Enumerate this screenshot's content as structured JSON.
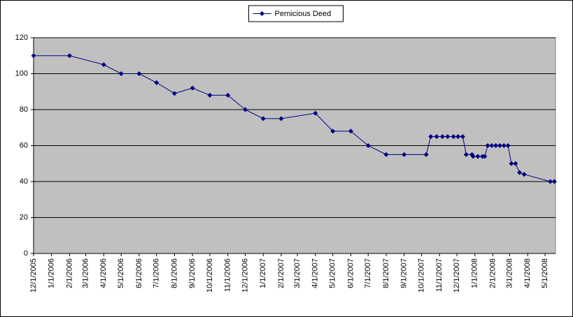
{
  "chart_data": {
    "type": "line",
    "x": [
      "12/1/2005",
      "2/1/2006",
      "4/1/2006",
      "5/1/2006",
      "6/1/2006",
      "7/1/2006",
      "8/1/2006",
      "9/1/2006",
      "10/1/2006",
      "11/1/2006",
      "12/1/2006",
      "1/1/2007",
      "2/1/2007",
      "4/1/2007",
      "5/1/2007",
      "6/1/2007",
      "7/1/2007",
      "8/1/2007",
      "9/1/2007",
      "10/9/2007",
      "10/17/2007",
      "10/27/2007",
      "11/6/2007",
      "11/15/2007",
      "11/25/2007",
      "12/3/2007",
      "12/11/2007",
      "12/17/2007",
      "12/27/2007",
      "12/29/2007",
      "1/6/2008",
      "1/14/2008",
      "1/18/2008",
      "1/23/2008",
      "1/30/2008",
      "2/6/2008",
      "2/13/2008",
      "2/20/2008",
      "2/27/2008",
      "3/4/2008",
      "3/11/2008",
      "3/18/2008",
      "3/26/2008",
      "5/10/2008",
      "5/17/2008"
    ],
    "series": [
      {
        "name": "Pernicious Deed",
        "color": "#000080",
        "values": [
          110,
          110,
          105,
          100,
          100,
          95,
          89,
          92,
          88,
          88,
          80,
          75,
          75,
          78,
          68,
          68,
          60,
          55,
          55,
          55,
          65,
          65,
          65,
          65,
          65,
          65,
          65,
          55,
          55,
          54,
          54,
          54,
          54,
          60,
          60,
          60,
          60,
          60,
          60,
          50,
          50,
          45,
          44,
          40,
          40
        ]
      }
    ],
    "xlim": [
      "12/1/2005",
      "5/19/2008"
    ],
    "xticks": [
      "12/1/2005",
      "1/1/2006",
      "2/1/2006",
      "3/1/2006",
      "4/1/2006",
      "5/1/2006",
      "6/1/2006",
      "7/1/2006",
      "8/1/2006",
      "9/1/2006",
      "10/1/2006",
      "11/1/2006",
      "12/1/2006",
      "1/1/2007",
      "2/1/2007",
      "3/1/2007",
      "4/1/2007",
      "5/1/2007",
      "6/1/2007",
      "7/1/2007",
      "8/1/2007",
      "9/1/2007",
      "10/1/2007",
      "11/1/2007",
      "12/1/2007",
      "1/1/2008",
      "2/1/2008",
      "3/1/2008",
      "4/1/2008",
      "5/1/2008"
    ],
    "ylim": [
      0,
      120
    ],
    "yticks": [
      0,
      20,
      40,
      60,
      80,
      100,
      120
    ],
    "grid": true,
    "legend": "top",
    "plot_background": "#c0c0c0"
  }
}
